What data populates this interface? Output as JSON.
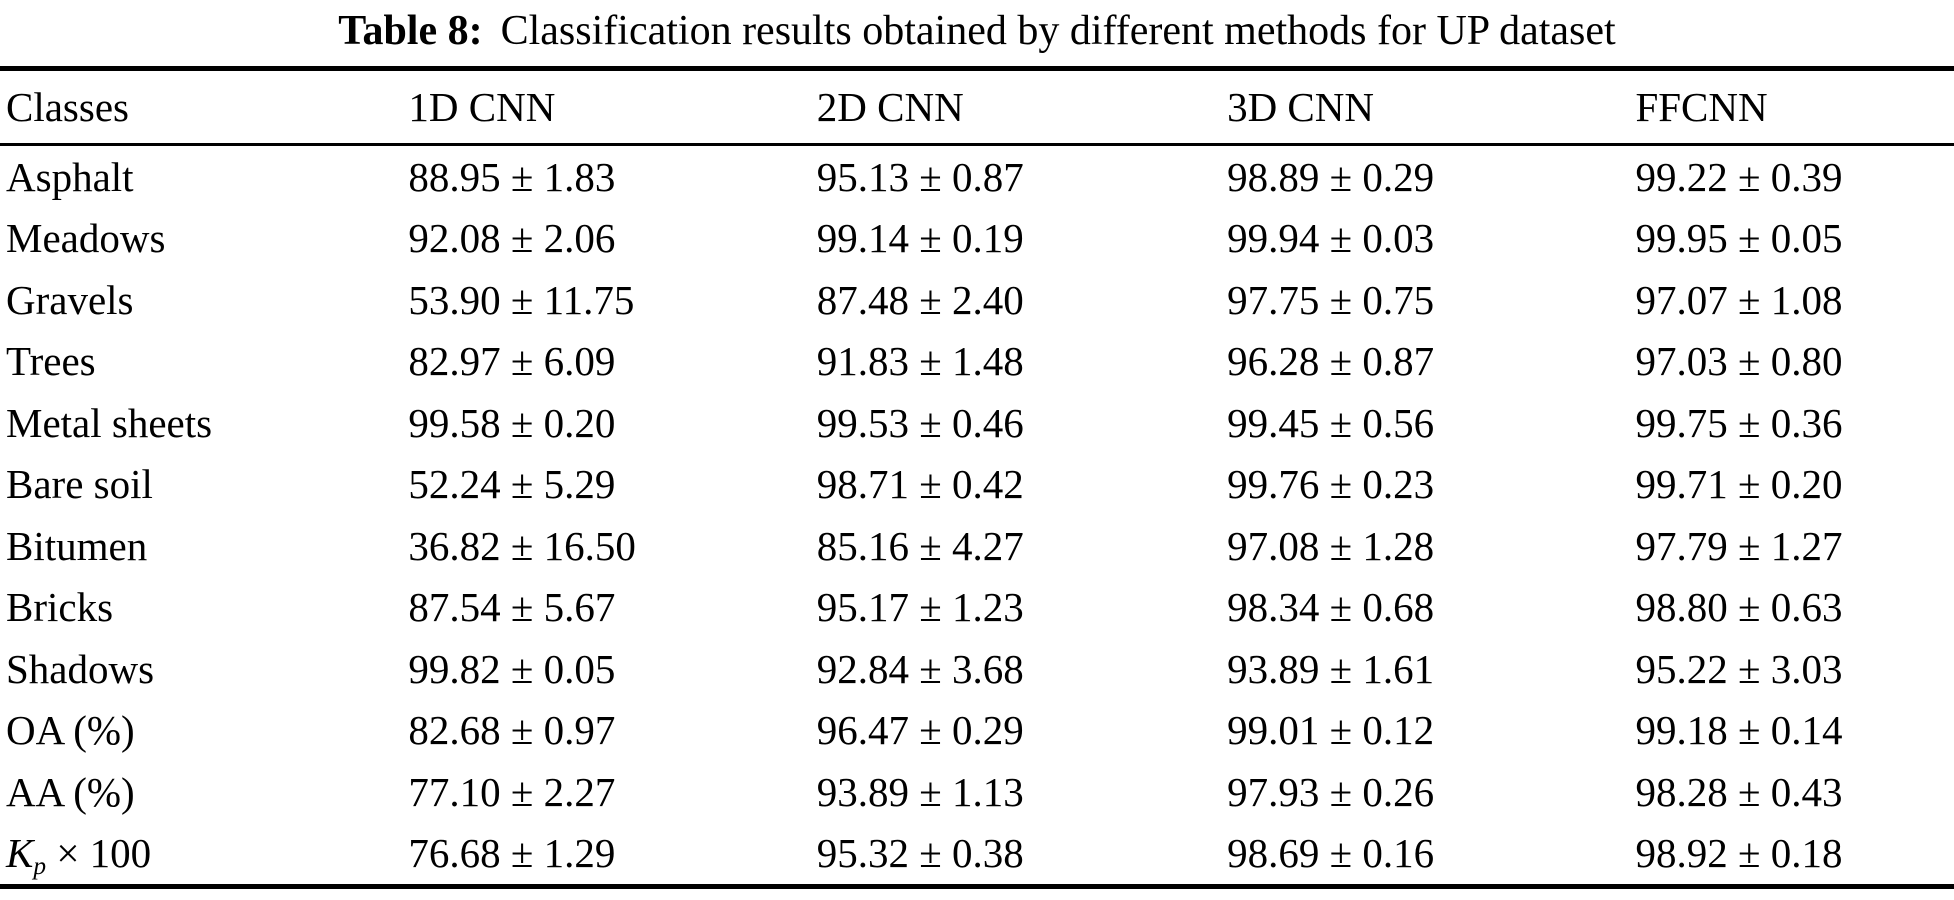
{
  "colors": {
    "text": "#000000",
    "background": "#ffffff",
    "rule": "#000000"
  },
  "caption": {
    "label": "Table 8:",
    "text": "Classification results obtained by different methods for UP dataset"
  },
  "table": {
    "headers": [
      "Classes",
      "1D CNN",
      "2D CNN",
      "3D CNN",
      "FFCNN"
    ],
    "rows": [
      {
        "label": "Asphalt",
        "values": [
          "88.95 ± 1.83",
          "95.13 ± 0.87",
          "98.89 ± 0.29",
          "99.22 ± 0.39"
        ]
      },
      {
        "label": "Meadows",
        "values": [
          "92.08 ± 2.06",
          "99.14 ± 0.19",
          "99.94 ± 0.03",
          "99.95 ± 0.05"
        ]
      },
      {
        "label": "Gravels",
        "values": [
          "53.90 ± 11.75",
          "87.48 ± 2.40",
          "97.75 ± 0.75",
          "97.07 ± 1.08"
        ]
      },
      {
        "label": "Trees",
        "values": [
          "82.97 ± 6.09",
          "91.83 ± 1.48",
          "96.28 ± 0.87",
          "97.03 ± 0.80"
        ]
      },
      {
        "label": "Metal sheets",
        "values": [
          "99.58 ± 0.20",
          "99.53 ± 0.46",
          "99.45 ± 0.56",
          "99.75 ± 0.36"
        ]
      },
      {
        "label": "Bare soil",
        "values": [
          "52.24 ± 5.29",
          "98.71 ± 0.42",
          "99.76 ± 0.23",
          "99.71 ± 0.20"
        ]
      },
      {
        "label": "Bitumen",
        "values": [
          "36.82 ± 16.50",
          "85.16 ± 4.27",
          "97.08 ± 1.28",
          "97.79 ± 1.27"
        ]
      },
      {
        "label": "Bricks",
        "values": [
          "87.54 ± 5.67",
          "95.17 ± 1.23",
          "98.34 ± 0.68",
          "98.80 ± 0.63"
        ]
      },
      {
        "label": "Shadows",
        "values": [
          "99.82 ± 0.05",
          "92.84 ± 3.68",
          "93.89 ± 1.61",
          "95.22 ± 3.03"
        ]
      },
      {
        "label": "OA (%)",
        "values": [
          "82.68 ± 0.97",
          "96.47 ± 0.29",
          "99.01 ± 0.12",
          "99.18 ± 0.14"
        ]
      },
      {
        "label": "AA (%)",
        "values": [
          "77.10 ± 2.27",
          "93.89 ± 1.13",
          "97.93 ± 0.26",
          "98.28 ± 0.43"
        ]
      },
      {
        "label_parts": {
          "k": "K",
          "sub": "p",
          "rest": " × 100"
        },
        "values": [
          "76.68 ± 1.29",
          "95.32 ± 0.38",
          "98.69 ± 0.16",
          "98.92 ± 0.18"
        ]
      }
    ]
  }
}
